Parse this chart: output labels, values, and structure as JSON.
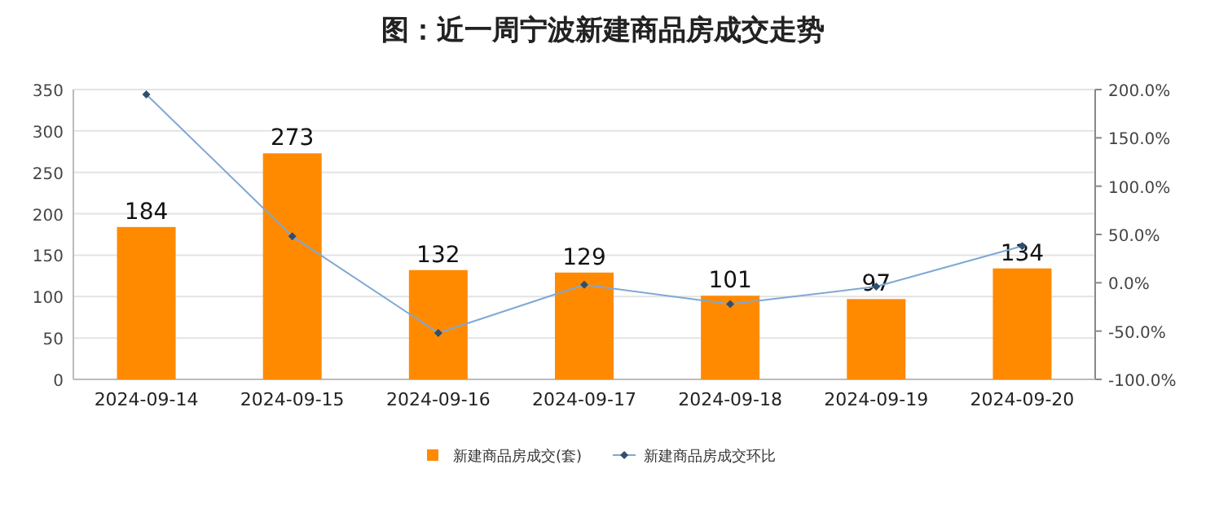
{
  "chart_data": {
    "type": "bar",
    "title": "图：近一周宁波新建商品房成交走势",
    "categories": [
      "2024-09-14",
      "2024-09-15",
      "2024-09-16",
      "2024-09-17",
      "2024-09-18",
      "2024-09-19",
      "2024-09-20"
    ],
    "series": [
      {
        "name": "新建商品房成交(套)",
        "color": "#ff8a00",
        "values": [
          184,
          273,
          132,
          129,
          101,
          97,
          134
        ],
        "value_labels": [
          "184",
          "273",
          "132",
          "129",
          "101",
          "97",
          "134"
        ]
      },
      {
        "name": "新建商品房成交环比",
        "type": "line",
        "axis": "y2",
        "color": "#7fa8d4",
        "marker": "diamond",
        "values": [
          195,
          48,
          -52,
          -2,
          -22,
          -4,
          38
        ]
      }
    ],
    "ylim": [
      0,
      350
    ],
    "yticks": [
      0,
      50,
      100,
      150,
      200,
      250,
      300,
      350
    ],
    "y2lim": [
      -100,
      200
    ],
    "y2ticks": [
      {
        "value": -100,
        "label": "-100.0%"
      },
      {
        "value": -50,
        "label": "-50.0%"
      },
      {
        "value": 0,
        "label": "0.0%"
      },
      {
        "value": 50,
        "label": "50.0%"
      },
      {
        "value": 100,
        "label": "100.0%"
      },
      {
        "value": 150,
        "label": "150.0%"
      },
      {
        "value": 200,
        "label": "200.0%"
      }
    ],
    "grid": "y",
    "legend": "bottom"
  }
}
